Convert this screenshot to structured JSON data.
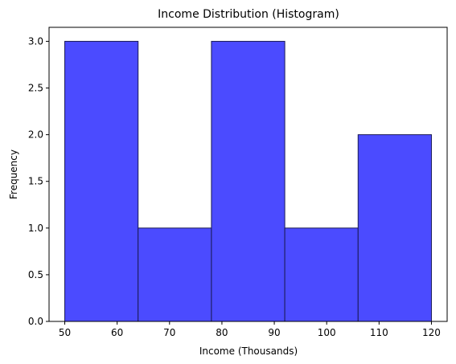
{
  "chart_data": {
    "type": "bar",
    "title": "Income Distribution (Histogram)",
    "xlabel": "Income (Thousands)",
    "ylabel": "Frequency",
    "bins": [
      {
        "start": 50,
        "end": 64,
        "count": 3
      },
      {
        "start": 64,
        "end": 78,
        "count": 1
      },
      {
        "start": 78,
        "end": 92,
        "count": 3
      },
      {
        "start": 92,
        "end": 106,
        "count": 1
      },
      {
        "start": 106,
        "end": 120,
        "count": 2
      }
    ],
    "xlim": [
      47,
      123
    ],
    "ylim": [
      0,
      3.15
    ],
    "x_ticks": [
      "50",
      "60",
      "70",
      "80",
      "90",
      "100",
      "110",
      "120"
    ],
    "y_ticks": [
      "0.0",
      "0.5",
      "1.0",
      "1.5",
      "2.0",
      "2.5",
      "3.0"
    ],
    "bar_color": "#4b4bff",
    "bar_edge_color": "#1a1a55",
    "grid": false,
    "legend": "none"
  }
}
